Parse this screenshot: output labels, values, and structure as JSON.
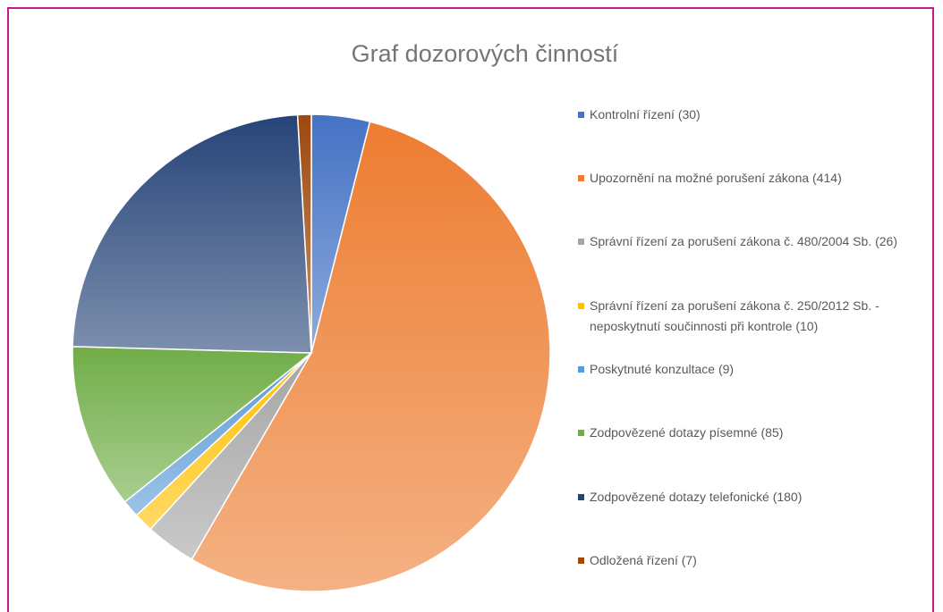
{
  "chart_data": {
    "type": "pie",
    "title": "Graf dozorových činností",
    "categories": [
      "Kontrolní řízení  (30)",
      "Upozornění na možné porušení zákona (414)",
      "Správní řízení za porušení zákona č. 480/2004 Sb. (26)",
      "Správní řízení za porušení zákona č. 250/2012 Sb. - neposkytnutí součinnosti při kontrole (10)",
      "Poskytnuté konzultace (9)",
      "Zodpovězené dotazy písemné (85)",
      "Zodpovězené dotazy telefonické (180)",
      "Odložená řízení (7)"
    ],
    "values": [
      30,
      414,
      26,
      10,
      9,
      85,
      180,
      7
    ],
    "colors": [
      "#4472c4",
      "#ed7d31",
      "#a5a5a5",
      "#ffc000",
      "#5b9bd5",
      "#70ad47",
      "#264478",
      "#9e480e"
    ],
    "legend": "right"
  }
}
